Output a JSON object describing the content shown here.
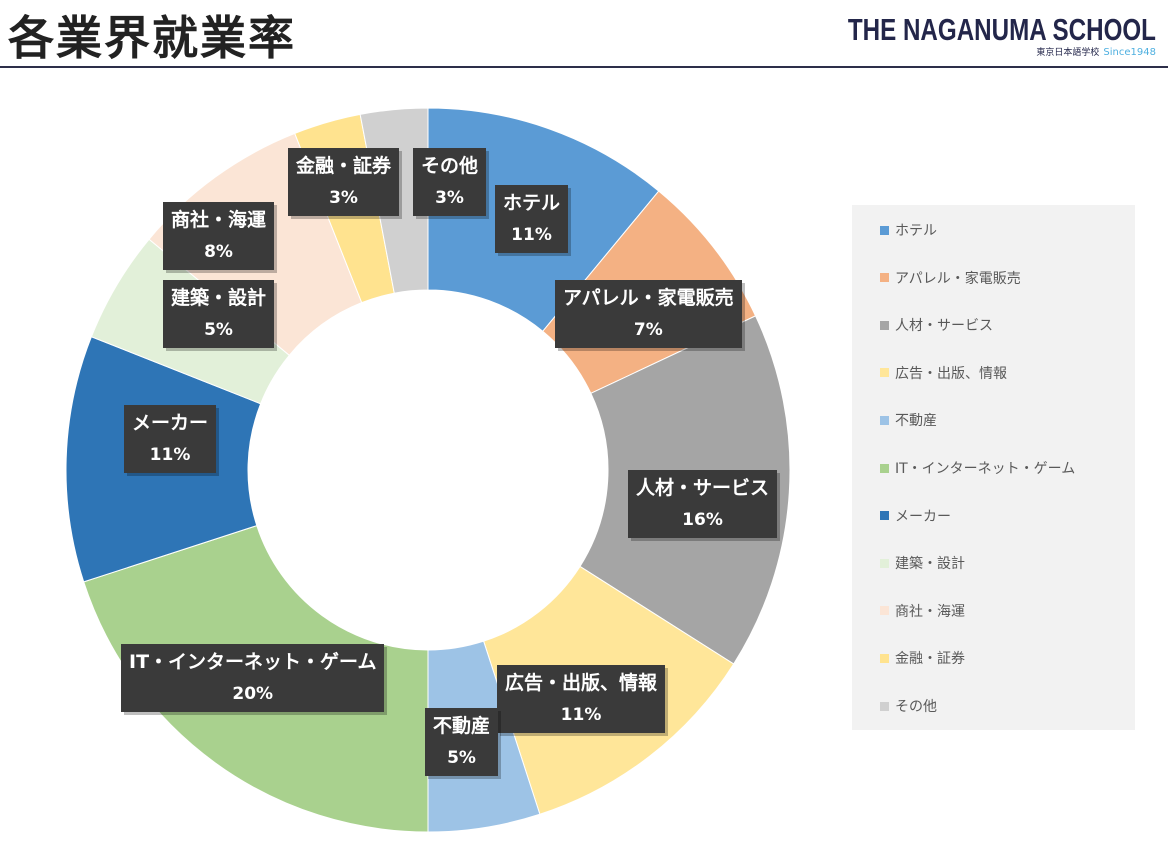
{
  "header": {
    "title": "各業界就業率",
    "logo_main": "THE NAGANUMA SCHOOL",
    "logo_sub": "東京日本語学校",
    "logo_since": "Since1948"
  },
  "chart_data": {
    "type": "pie",
    "variant": "donut",
    "title": "各業界就業率",
    "categories": [
      "ホテル",
      "アパレル・家電販売",
      "人材・サービス",
      "広告・出版、情報",
      "不動産",
      "IT・インターネット・ゲーム",
      "メーカー",
      "建築・設計",
      "商社・海運",
      "金融・証券",
      "その他"
    ],
    "values": [
      11,
      7,
      16,
      11,
      5,
      20,
      11,
      5,
      8,
      3,
      3
    ],
    "labels": [
      "11%",
      "7%",
      "16%",
      "11%",
      "5%",
      "20%",
      "11%",
      "5%",
      "8%",
      "3%",
      "3%"
    ],
    "colors": [
      "#5B9BD5",
      "#F4B183",
      "#A5A5A5",
      "#FFE699",
      "#9DC3E6",
      "#A9D18E",
      "#2E75B6",
      "#E2F0D9",
      "#FBE5D6",
      "#FFE38F",
      "#D0D0D0"
    ],
    "legend": "right"
  }
}
